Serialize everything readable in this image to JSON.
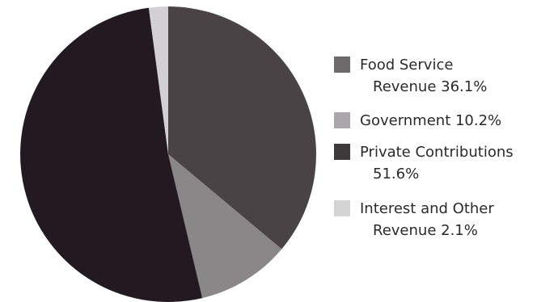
{
  "chart_data": {
    "type": "pie",
    "title": "",
    "slices": [
      {
        "label_lines": [
          "Food Service",
          "Revenue 36.1%"
        ],
        "value": 36.1,
        "color": "#4a4345"
      },
      {
        "label_lines": [
          "Government 10.2%"
        ],
        "value": 10.2,
        "color": "#8b8688"
      },
      {
        "label_lines": [
          "Private Contributions",
          "51.6%"
        ],
        "value": 51.6,
        "color": "#221a1e"
      },
      {
        "label_lines": [
          "Interest and Other",
          "Revenue 2.1%"
        ],
        "value": 2.1,
        "color": "#d2d0d2"
      }
    ],
    "legend": {
      "position": "right",
      "swatch_colors": [
        "#6e6a6c",
        "#a9a7a9",
        "#3c3a3b",
        "#d5d4d5"
      ]
    },
    "start_angle_deg": 0,
    "direction": "clockwise"
  }
}
